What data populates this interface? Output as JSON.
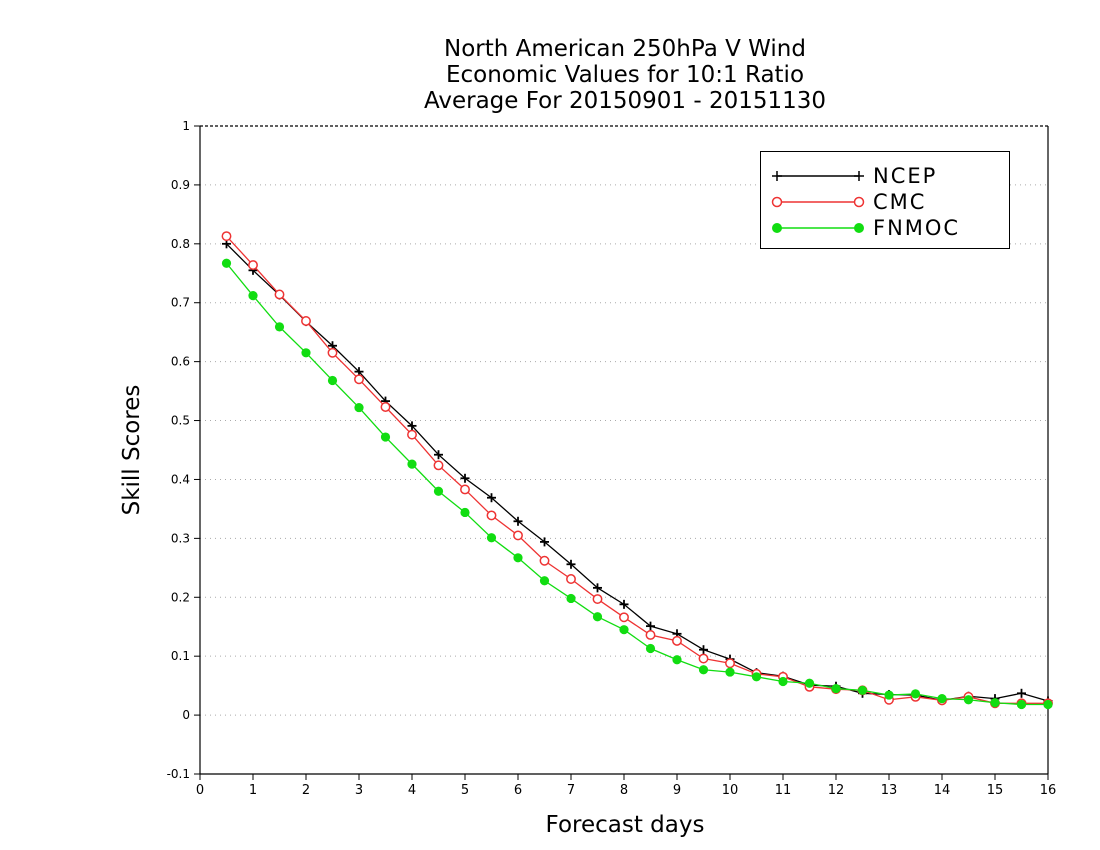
{
  "chart_data": {
    "type": "line",
    "title_lines": [
      "North American 250hPa V Wind",
      "Economic Values for 10:1 Ratio",
      "Average For 20150901 - 20151130"
    ],
    "xlabel": "Forecast days",
    "ylabel": "Skill Scores",
    "xlim": [
      0,
      16
    ],
    "ylim": [
      -0.1,
      1
    ],
    "xticks": [
      0,
      1,
      2,
      3,
      4,
      5,
      6,
      7,
      8,
      9,
      10,
      11,
      12,
      13,
      14,
      15,
      16
    ],
    "yticks": [
      -0.1,
      0,
      0.1,
      0.2,
      0.3,
      0.4,
      0.5,
      0.6,
      0.7,
      0.8,
      0.9,
      1
    ],
    "ytick_labels": [
      "-0.1",
      "0",
      "0.1",
      "0.2",
      "0.3",
      "0.4",
      "0.5",
      "0.6",
      "0.7",
      "0.8",
      "0.9",
      "1"
    ],
    "grid": true,
    "legend_position": "top-right",
    "x": [
      0.5,
      1,
      1.5,
      2,
      2.5,
      3,
      3.5,
      4,
      4.5,
      5,
      5.5,
      6,
      6.5,
      7,
      7.5,
      8,
      8.5,
      9,
      9.5,
      10,
      10.5,
      11,
      11.5,
      12,
      12.5,
      13,
      13.5,
      14,
      14.5,
      15,
      15.5,
      16
    ],
    "series": [
      {
        "name": "NCEP",
        "color": "#000000",
        "marker": "plus",
        "values": [
          0.8,
          0.755,
          0.713,
          0.668,
          0.627,
          0.583,
          0.533,
          0.491,
          0.442,
          0.402,
          0.369,
          0.329,
          0.294,
          0.256,
          0.216,
          0.188,
          0.151,
          0.138,
          0.111,
          0.095,
          0.072,
          0.066,
          0.051,
          0.049,
          0.037,
          0.035,
          0.034,
          0.025,
          0.032,
          0.028,
          0.037,
          0.024
        ]
      },
      {
        "name": "CMC",
        "color": "#ee3333",
        "marker": "open-circle",
        "values": [
          0.813,
          0.764,
          0.714,
          0.669,
          0.615,
          0.57,
          0.523,
          0.476,
          0.424,
          0.383,
          0.339,
          0.305,
          0.262,
          0.231,
          0.197,
          0.166,
          0.136,
          0.126,
          0.096,
          0.088,
          0.07,
          0.065,
          0.048,
          0.044,
          0.042,
          0.026,
          0.031,
          0.025,
          0.031,
          0.02,
          0.02,
          0.02
        ]
      },
      {
        "name": "FNMOC",
        "color": "#11dd11",
        "marker": "filled-circle",
        "values": [
          0.767,
          0.712,
          0.659,
          0.615,
          0.568,
          0.522,
          0.472,
          0.426,
          0.38,
          0.344,
          0.301,
          0.267,
          0.228,
          0.198,
          0.167,
          0.145,
          0.113,
          0.094,
          0.077,
          0.073,
          0.065,
          0.057,
          0.054,
          0.045,
          0.042,
          0.034,
          0.036,
          0.028,
          0.026,
          0.021,
          0.018,
          0.018
        ]
      }
    ]
  }
}
